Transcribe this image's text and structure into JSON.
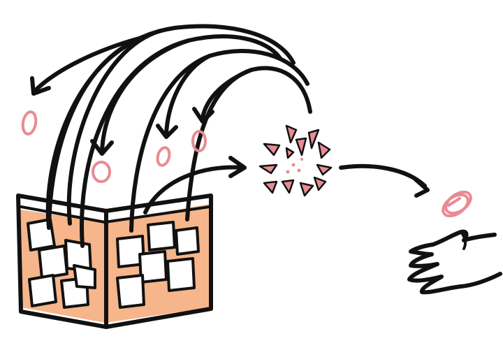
{
  "illustration": {
    "style": "hand-drawn sketch",
    "colors": {
      "ink": "#111111",
      "accent_pink": "#e88b92",
      "accent_peach": "#f6b58a",
      "background": "#ffffff"
    },
    "icons": [
      "open-box-icon",
      "token-icon",
      "burst-icon",
      "coin-icon",
      "hand-icon",
      "arrow-icon"
    ],
    "counts": {
      "arrows_from_box_to_tokens": 4,
      "floating_tokens": 5,
      "arrows_to_burst": 1,
      "arrows_burst_to_coin": 1
    }
  }
}
